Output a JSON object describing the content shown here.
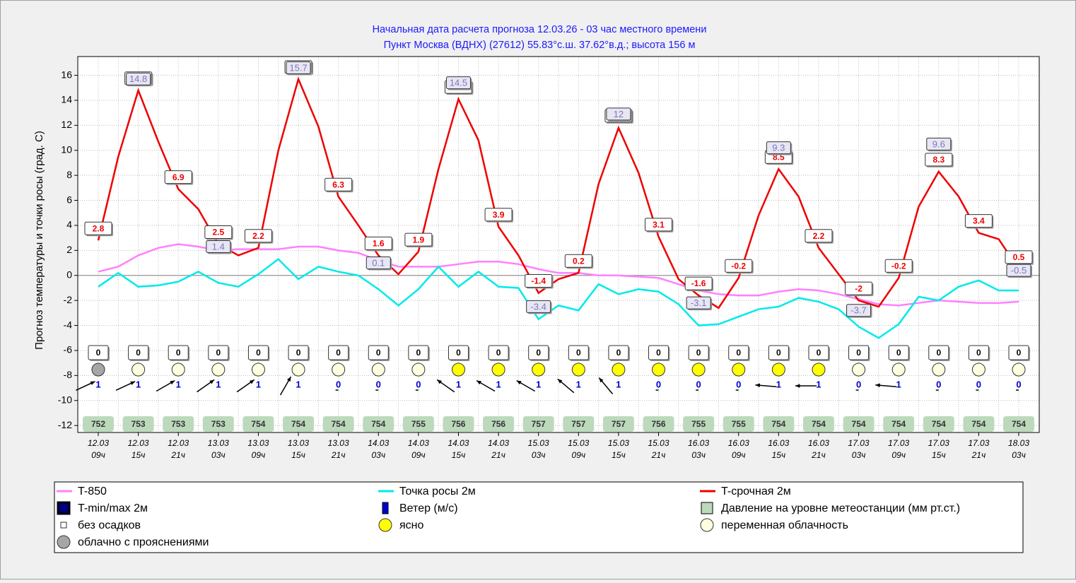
{
  "chart_data": {
    "type": "line",
    "title": [
      "Начальная дата расчета прогноза 12.03.26 - 03 час местного времени",
      "Пункт  Москва (ВДНХ) (27612)   55.83°с.ш.  37.62°в.д.; высота 156 м"
    ],
    "ylabel": "Прогноз температуры и точки росы (град. С)",
    "ylim": [
      -12.5,
      17.5
    ],
    "yticks": [
      -12,
      -10,
      -8,
      -6,
      -4,
      -2,
      0,
      2,
      4,
      6,
      8,
      10,
      12,
      14,
      16
    ],
    "grid": true,
    "categories": [
      {
        "date": "12.03",
        "hour": "09ч"
      },
      null,
      {
        "date": "12.03",
        "hour": "15ч"
      },
      null,
      {
        "date": "12.03",
        "hour": "21ч"
      },
      null,
      {
        "date": "13.03",
        "hour": "03ч"
      },
      null,
      {
        "date": "13.03",
        "hour": "09ч"
      },
      null,
      {
        "date": "13.03",
        "hour": "15ч"
      },
      null,
      {
        "date": "13.03",
        "hour": "21ч"
      },
      null,
      {
        "date": "14.03",
        "hour": "03ч"
      },
      null,
      {
        "date": "14.03",
        "hour": "09ч"
      },
      null,
      {
        "date": "14.03",
        "hour": "15ч"
      },
      null,
      {
        "date": "14.03",
        "hour": "21ч"
      },
      null,
      {
        "date": "15.03",
        "hour": "03ч"
      },
      null,
      {
        "date": "15.03",
        "hour": "09ч"
      },
      null,
      {
        "date": "15.03",
        "hour": "15ч"
      },
      null,
      {
        "date": "15.03",
        "hour": "21ч"
      },
      null,
      {
        "date": "16.03",
        "hour": "03ч"
      },
      null,
      {
        "date": "16.03",
        "hour": "09ч"
      },
      null,
      {
        "date": "16.03",
        "hour": "15ч"
      },
      null,
      {
        "date": "16.03",
        "hour": "21ч"
      },
      null,
      {
        "date": "17.03",
        "hour": "03ч"
      },
      null,
      {
        "date": "17.03",
        "hour": "09ч"
      },
      null,
      {
        "date": "17.03",
        "hour": "15ч"
      },
      null,
      {
        "date": "17.03",
        "hour": "21ч"
      },
      null,
      {
        "date": "18.03",
        "hour": "03ч"
      }
    ],
    "series": [
      {
        "name": "T-850",
        "color": "#ff80ff",
        "style": "line",
        "values": [
          0.3,
          0.7,
          1.6,
          2.2,
          2.5,
          2.3,
          2.0,
          2.1,
          2.1,
          2.1,
          2.3,
          2.3,
          2.0,
          1.8,
          1.2,
          0.7,
          0.7,
          0.7,
          0.9,
          1.1,
          1.1,
          0.9,
          0.5,
          0.2,
          0.2,
          0.0,
          0.0,
          -0.1,
          -0.2,
          -0.7,
          -1.2,
          -1.5,
          -1.6,
          -1.6,
          -1.3,
          -1.1,
          -1.2,
          -1.5,
          -1.9,
          -2.3,
          -2.4,
          -2.2,
          -2.0,
          -2.1,
          -2.2,
          -2.2,
          -2.1
        ]
      },
      {
        "name": "Точка росы 2м",
        "color": "#00eaea",
        "style": "line",
        "values": [
          -0.9,
          0.2,
          -0.9,
          -0.8,
          -0.5,
          0.3,
          -0.6,
          -0.9,
          0.1,
          1.3,
          -0.3,
          0.7,
          0.3,
          0,
          -1.1,
          -2.4,
          -1.1,
          0.7,
          -0.9,
          0.3,
          -0.9,
          -1.0,
          -3.5,
          -2.4,
          -2.8,
          -0.7,
          -1.5,
          -1.1,
          -1.3,
          -2.3,
          -4.0,
          -3.9,
          -3.3,
          -2.7,
          -2.5,
          -1.8,
          -2.1,
          -2.7,
          -4.1,
          -5.0,
          -3.9,
          -1.7,
          -2.0,
          -0.9,
          -0.4,
          -1.2,
          -1.2
        ]
      },
      {
        "name": "T-срочная 2м",
        "color": "#ee0000",
        "style": "line-labeled",
        "values": [
          2.8,
          9.5,
          14.8,
          10.7,
          6.9,
          5.3,
          2.5,
          1.6,
          2.2,
          10.0,
          15.7,
          11.9,
          6.3,
          4.0,
          1.6,
          0.1,
          1.9,
          8.5,
          14.1,
          10.8,
          3.9,
          1.6,
          -1.4,
          -0.3,
          0.2,
          7.3,
          11.8,
          8.2,
          3.1,
          -0.3,
          -1.6,
          -2.6,
          -0.2,
          4.8,
          8.5,
          6.3,
          2.2,
          0.1,
          -2,
          -2.5,
          -0.2,
          5.5,
          8.3,
          6.3,
          3.4,
          2.9,
          0.5
        ]
      },
      {
        "name": "T-min/max 2м",
        "color": "#000080",
        "style": "labels",
        "values": [
          null,
          null,
          14.8,
          null,
          null,
          null,
          1.4,
          null,
          null,
          null,
          15.7,
          null,
          null,
          null,
          0.1,
          null,
          null,
          null,
          14.5,
          null,
          null,
          null,
          -3.4,
          null,
          null,
          null,
          12,
          null,
          null,
          null,
          -3.1,
          null,
          null,
          null,
          9.3,
          null,
          null,
          null,
          -3.7,
          null,
          null,
          null,
          9.6,
          null,
          null,
          null,
          -0.5
        ]
      }
    ],
    "precipitation": [
      0,
      null,
      0,
      null,
      0,
      null,
      0,
      null,
      0,
      null,
      0,
      null,
      0,
      null,
      0,
      null,
      0,
      null,
      0,
      null,
      0,
      null,
      0,
      null,
      0,
      null,
      0,
      null,
      0,
      null,
      0,
      null,
      0,
      null,
      0,
      null,
      0,
      null,
      0,
      null,
      0,
      null,
      0,
      null,
      0,
      null,
      0
    ],
    "cloud_colors": [
      "#a6a6a6",
      null,
      "#ffffe0",
      null,
      "#ffffe0",
      null,
      "#ffffe0",
      null,
      "#ffffe0",
      null,
      "#ffffe0",
      null,
      "#ffffe0",
      null,
      "#ffffe0",
      null,
      "#ffffe0",
      null,
      "#ffff00",
      null,
      "#ffff00",
      null,
      "#ffff00",
      null,
      "#ffff00",
      null,
      "#ffff00",
      null,
      "#ffff00",
      null,
      "#ffff00",
      null,
      "#ffff00",
      null,
      "#ffff00",
      null,
      "#ffff00",
      null,
      "#ffffe0",
      null,
      "#ffffe0",
      null,
      "#ffffe0",
      null,
      "#ffffe0",
      null,
      "#ffffe0"
    ],
    "wind": [
      1,
      null,
      1,
      null,
      1,
      null,
      1,
      null,
      1,
      null,
      1,
      null,
      0,
      null,
      0,
      null,
      0,
      null,
      1,
      null,
      1,
      null,
      1,
      null,
      1,
      null,
      1,
      null,
      0,
      null,
      0,
      null,
      0,
      null,
      1,
      null,
      1,
      null,
      0,
      null,
      1,
      null,
      0,
      null,
      0,
      null,
      0
    ],
    "wind_direction": [
      245,
      null,
      245,
      null,
      240,
      null,
      235,
      null,
      235,
      null,
      210,
      null,
      null,
      null,
      null,
      null,
      null,
      null,
      125,
      null,
      120,
      null,
      120,
      null,
      130,
      null,
      140,
      null,
      null,
      null,
      null,
      null,
      null,
      null,
      95,
      null,
      90,
      null,
      null,
      null,
      95,
      null,
      null,
      null,
      null,
      null,
      null
    ],
    "wind_color": "#0000cc",
    "pressure": [
      752,
      null,
      753,
      null,
      753,
      null,
      753,
      null,
      754,
      null,
      754,
      null,
      754,
      null,
      754,
      null,
      755,
      null,
      756,
      null,
      756,
      null,
      757,
      null,
      757,
      null,
      757,
      null,
      756,
      null,
      755,
      null,
      755,
      null,
      754,
      null,
      754,
      null,
      754,
      null,
      754,
      null,
      754,
      null,
      754,
      null,
      754
    ],
    "pressure_color": "#bcd9bc",
    "legend_extra": [
      {
        "label": "Ветер (м/с)",
        "color": "#0000cc",
        "shape": "bar"
      },
      {
        "label": "Давление на уровне метеостанции (мм рт.ст.)",
        "color": "#bcd9bc",
        "shape": "square"
      },
      {
        "label": "без осадков",
        "color": "#ffffff",
        "shape": "small-square"
      },
      {
        "label": "ясно",
        "color": "#ffff00",
        "shape": "circle"
      },
      {
        "label": "переменная облачность",
        "color": "#ffffe0",
        "shape": "circle"
      },
      {
        "label": "облачно с прояснениями",
        "color": "#a6a6a6",
        "shape": "circle"
      }
    ]
  }
}
